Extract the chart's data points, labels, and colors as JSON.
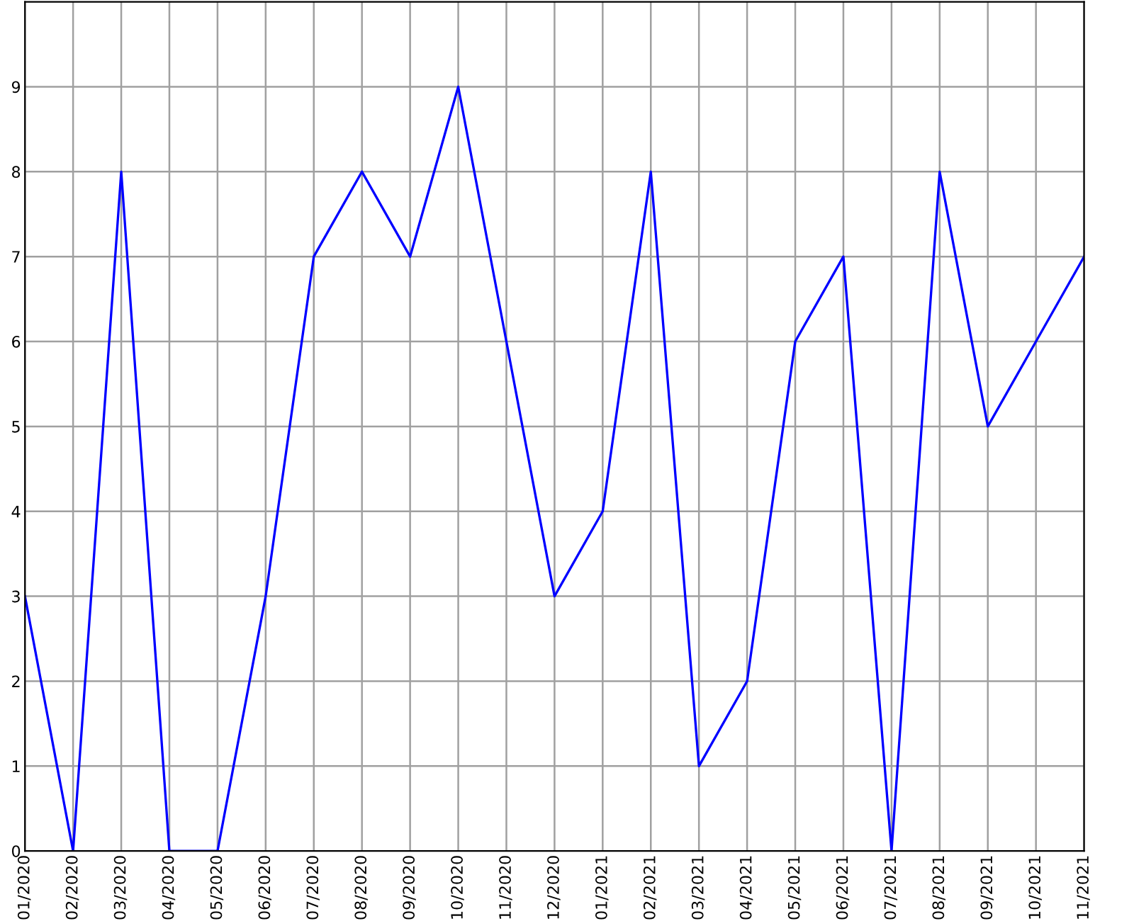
{
  "chart_data": {
    "type": "line",
    "categories": [
      "01/2020",
      "02/2020",
      "03/2020",
      "04/2020",
      "05/2020",
      "06/2020",
      "07/2020",
      "08/2020",
      "09/2020",
      "10/2020",
      "11/2020",
      "12/2020",
      "01/2021",
      "02/2021",
      "03/2021",
      "04/2021",
      "05/2021",
      "06/2021",
      "07/2021",
      "08/2021",
      "09/2021",
      "10/2021",
      "11/2021"
    ],
    "series": [
      {
        "color": "#0000ff",
        "values": [
          3,
          0,
          8,
          0,
          0,
          3,
          7,
          8,
          7,
          9,
          6,
          3,
          4,
          8,
          1,
          2,
          6,
          7,
          0,
          8,
          5,
          6,
          7
        ]
      }
    ],
    "ylim": [
      0,
      10
    ],
    "yticks": [
      0,
      1,
      2,
      3,
      4,
      5,
      6,
      7,
      8,
      9
    ],
    "grid": true,
    "marker": "none",
    "line_style": "solid"
  }
}
